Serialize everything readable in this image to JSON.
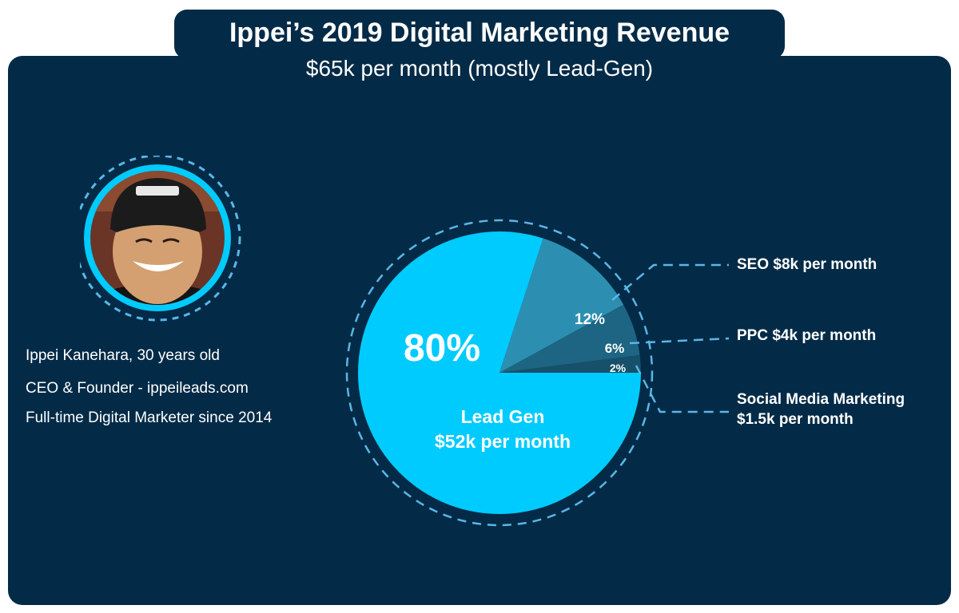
{
  "header": {
    "title": "Ippei’s 2019 Digital Marketing Revenue",
    "subtitle": "$65k per month (mostly Lead-Gen)"
  },
  "profile": {
    "lines": [
      "Ippei Kanehara, 30 years old",
      "CEO & Founder - ippeileads.com",
      "Full-time Digital Marketer since 2014"
    ]
  },
  "colors": {
    "background": "#032b47",
    "lead_gen": "#00cbff",
    "seo": "#2c8fb1",
    "ppc": "#1d6582",
    "social": "#17506a",
    "dash": "#5bb6e6"
  },
  "chart_data": {
    "type": "pie",
    "title": "Ippei’s 2019 Digital Marketing Revenue",
    "subtitle": "$65k per month (mostly Lead-Gen)",
    "slices": [
      {
        "label": "Lead Gen",
        "percent": 80,
        "percent_label": "80%",
        "value_label": "$52k per month",
        "color": "#00cbff"
      },
      {
        "label": "SEO",
        "percent": 12,
        "percent_label": "12%",
        "value_label": "$8k per month",
        "color": "#2c8fb1"
      },
      {
        "label": "PPC",
        "percent": 6,
        "percent_label": "6%",
        "value_label": "$4k per month",
        "color": "#1d6582"
      },
      {
        "label": "Social Media Marketing",
        "percent": 2,
        "percent_label": "2%",
        "value_label": "$1.5k per month",
        "color": "#17506a"
      }
    ],
    "legend": {
      "seo": "SEO $8k per month",
      "ppc": "PPC $4k per month",
      "social_line1": "Social Media Marketing",
      "social_line2": "$1.5k per month"
    }
  }
}
